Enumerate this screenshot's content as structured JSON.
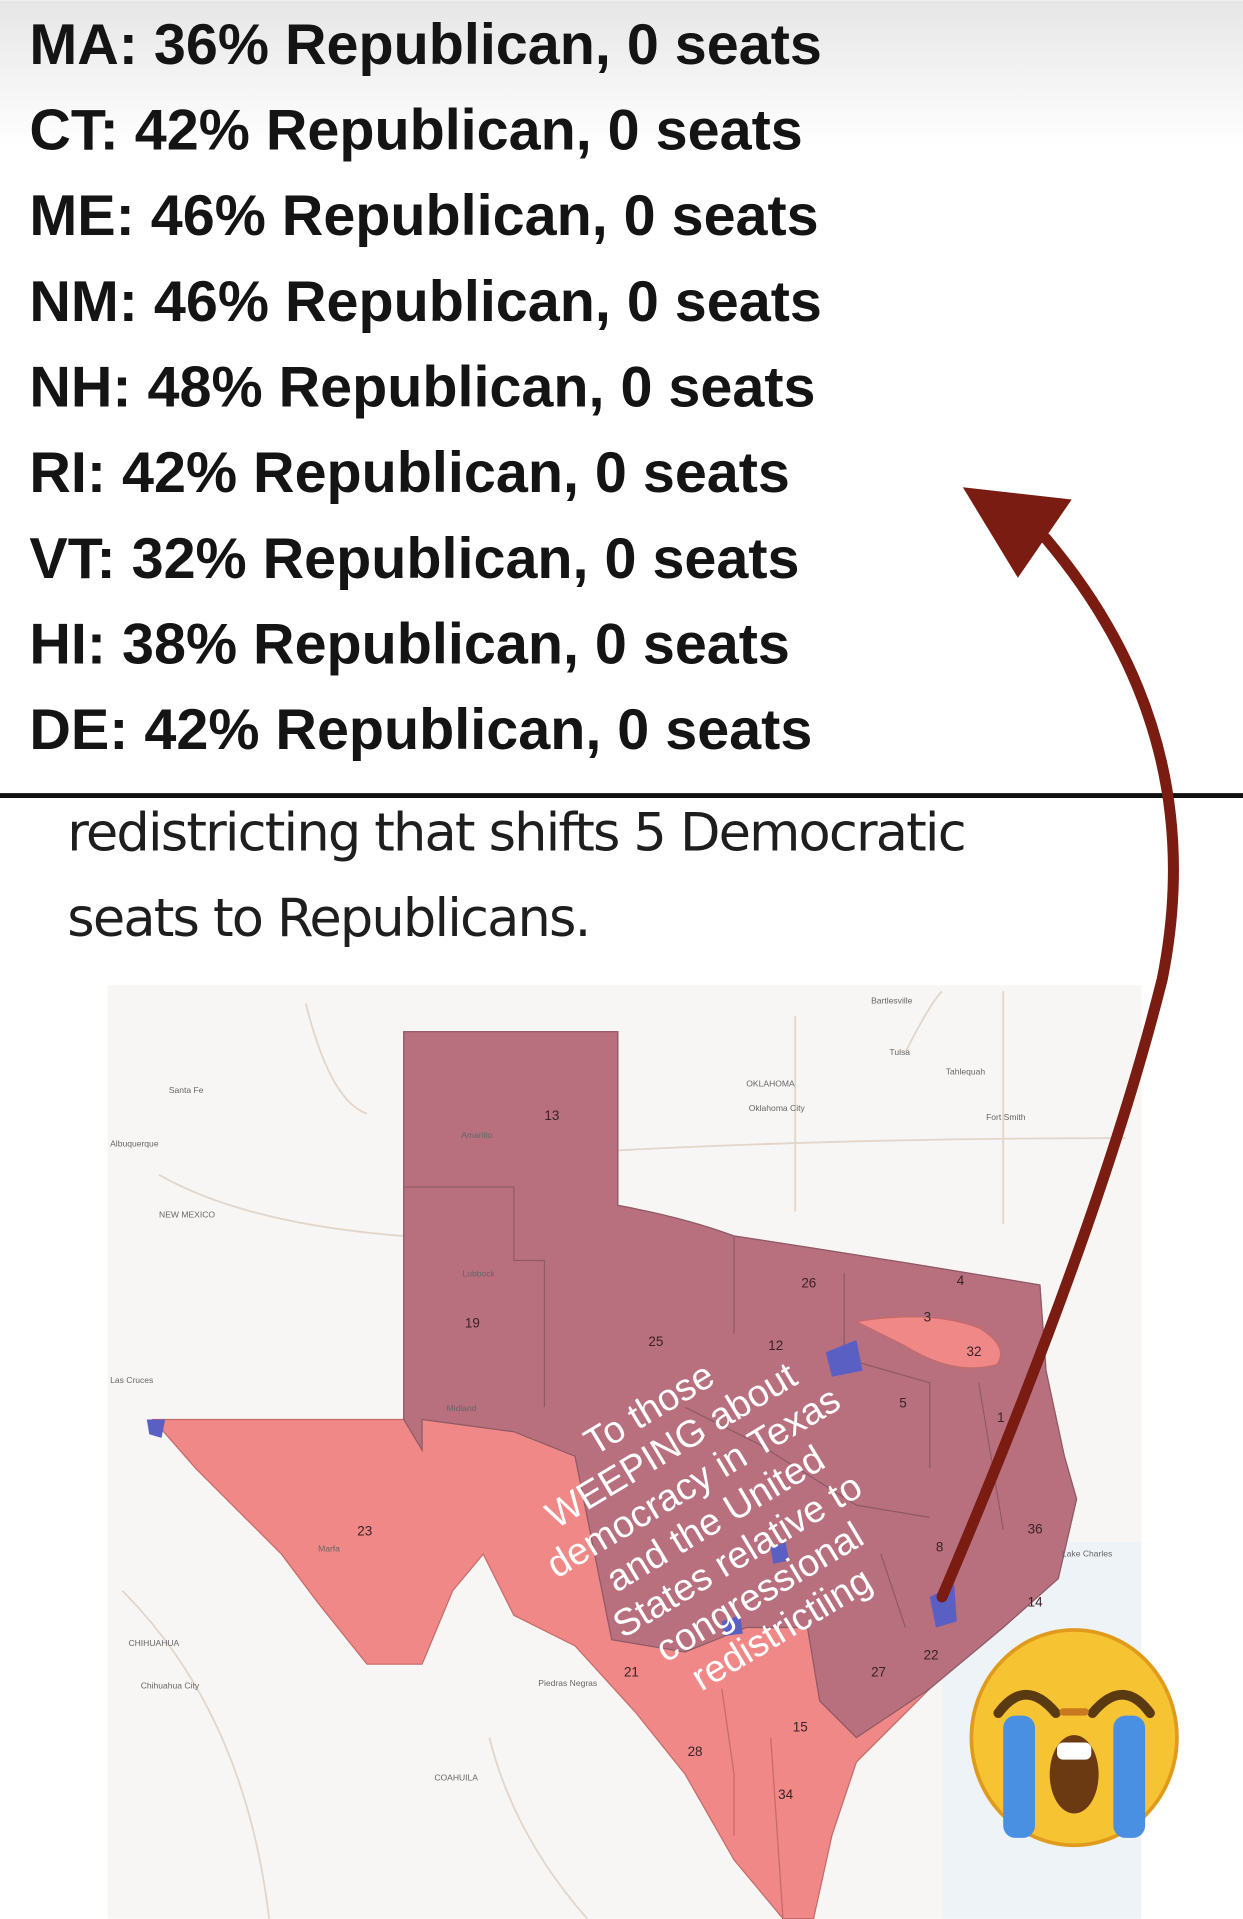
{
  "stats": [
    "MA: 36% Republican, 0 seats",
    "CT: 42% Republican, 0 seats",
    "ME: 46% Republican, 0 seats",
    "NM: 46% Republican, 0 seats",
    "NH: 48% Republican, 0 seats",
    "RI: 42% Republican, 0 seats",
    "VT: 32% Republican, 0 seats",
    "HI: 38% Republican, 0 seats",
    "DE: 42% Republican, 0 seats"
  ],
  "subtitle": [
    "redistricting that shifts 5 Democratic",
    "seats to Republicans."
  ],
  "map": {
    "labels": {
      "oklahoma": "OKLAHOMA",
      "new_mexico": "NEW MEXICO",
      "chihuahua": "CHIHUAHUA",
      "coahuila": "COAHUILA",
      "santa_fe": "Santa Fe",
      "albuquerque": "Albuquerque",
      "oklahoma_city": "Oklahoma City",
      "tulsa": "Tulsa",
      "bartlesville": "Bartlesville",
      "tahlequah": "Tahlequah",
      "fort_smith": "Fort Smith",
      "amarillo": "Amarillo",
      "lubbock": "Lubbock",
      "midland": "Midland",
      "las_cruces": "Las Cruces",
      "chihuahua_city": "Chihuahua City",
      "piedras_negras": "Piedras Negras",
      "lake_charles": "Lake Charles",
      "marfa": "Marfa"
    },
    "districts": [
      "13",
      "19",
      "23",
      "26",
      "4",
      "3",
      "32",
      "12",
      "25",
      "5",
      "1",
      "36",
      "8",
      "21",
      "14",
      "22",
      "27",
      "15",
      "28",
      "34"
    ],
    "colors": {
      "republican_dark": "#b8707e",
      "republican_light": "#ef8886",
      "democratic": "#5a5fc4"
    }
  },
  "caption": [
    "To those",
    "WEEPING about",
    "democracy in Texas",
    "and the United",
    "States relative to",
    "congressional",
    "redistrictiing"
  ],
  "arrow_color": "#7a1c12",
  "emoji": "loudly-crying-face"
}
